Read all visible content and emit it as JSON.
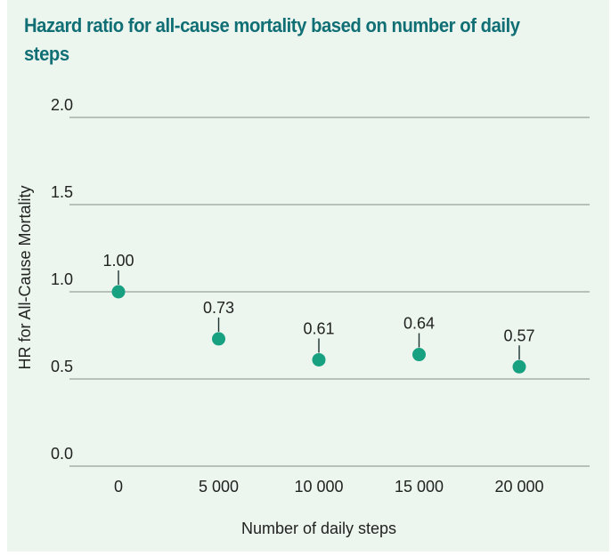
{
  "panel": {
    "background": "#edf5ef"
  },
  "title": {
    "text": "Hazard ratio for all-cause mortality based on number of daily steps",
    "color": "#106f74"
  },
  "chart_data": {
    "type": "scatter",
    "title": "Hazard ratio for all-cause mortality based on number of daily steps",
    "x": [
      0,
      5000,
      10000,
      15000,
      20000
    ],
    "values": [
      1.0,
      0.73,
      0.61,
      0.64,
      0.57
    ],
    "point_labels": [
      "1.00",
      "0.73",
      "0.61",
      "0.64",
      "0.57"
    ],
    "x_tick_labels": [
      "0",
      "5 000",
      "10 000",
      "15 000",
      "20 000"
    ],
    "y_ticks": [
      0.0,
      0.5,
      1.0,
      1.5,
      2.0
    ],
    "y_tick_labels": [
      "0.0",
      "0.5",
      "1.0",
      "1.5",
      "2.0"
    ],
    "xlabel": "Number of daily steps",
    "ylabel": "HR for All-Cause Mortality",
    "xlim": [
      0,
      20000
    ],
    "ylim": [
      0.0,
      2.0
    ],
    "grid": true,
    "legend": "none",
    "colors": {
      "point": "#17a181",
      "grid_line": "#9aa09e",
      "leader_line": "#1c3230",
      "text": "#212321"
    }
  }
}
